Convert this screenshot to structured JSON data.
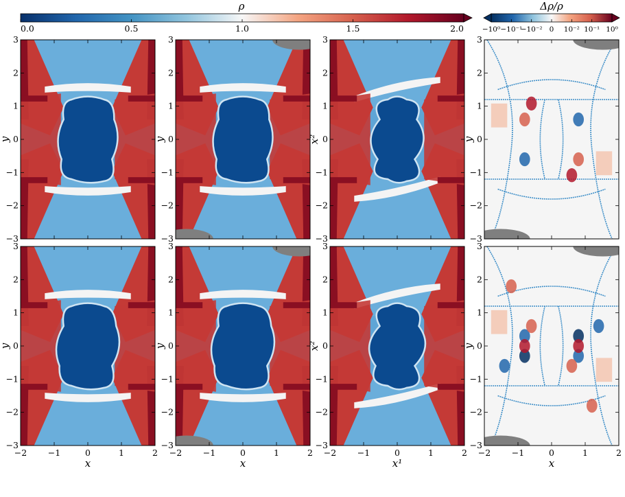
{
  "colorbar_rho": {
    "title": "ρ",
    "tick_labels": [
      "0.0",
      "0.5",
      "1.0",
      "1.5",
      "2.0"
    ],
    "ticks": [
      0.0,
      0.5,
      1.0,
      1.5,
      2.0
    ],
    "range": [
      0.0,
      2.0
    ],
    "extend": "max",
    "colormap": [
      "#08306b",
      "#2166ac",
      "#4393c3",
      "#92c5de",
      "#f7f7f7",
      "#f4a582",
      "#d6604d",
      "#b2182b",
      "#67001f"
    ]
  },
  "colorbar_diff": {
    "title": "Δρ/ρ",
    "tick_labels": [
      "−10⁰",
      "−10⁻¹",
      "−10⁻²",
      "0",
      "10⁻²",
      "10⁻¹",
      "10⁰"
    ],
    "extend": "both",
    "scale": "symlog"
  },
  "chart_data": [
    {
      "type": "heatmap",
      "panel": "top-1",
      "quantity": "ρ",
      "xlabel": "",
      "ylabel": "y",
      "xlim": [
        -2,
        2
      ],
      "ylim": [
        -3,
        3
      ],
      "xticks": [],
      "yticks": [
        "−3",
        "−2",
        "−1",
        "0",
        "1",
        "2",
        "3"
      ]
    },
    {
      "type": "heatmap",
      "panel": "top-2",
      "quantity": "ρ",
      "xlabel": "",
      "ylabel": "y",
      "xlim": [
        -2,
        2
      ],
      "ylim": [
        -3,
        3
      ],
      "xticks": [],
      "yticks": [
        "−3",
        "−2",
        "−1",
        "0",
        "1",
        "2",
        "3"
      ]
    },
    {
      "type": "heatmap",
      "panel": "top-3",
      "quantity": "ρ",
      "xlabel": "",
      "ylabel": "x²",
      "xlim": [
        -2,
        2
      ],
      "ylim": [
        -3,
        3
      ],
      "xticks": [],
      "yticks": [
        "−3",
        "−2",
        "−1",
        "0",
        "1",
        "2",
        "3"
      ]
    },
    {
      "type": "heatmap",
      "panel": "top-4",
      "quantity": "Δρ/ρ",
      "xlabel": "",
      "ylabel": "y",
      "xlim": [
        -2,
        2
      ],
      "ylim": [
        -3,
        3
      ],
      "xticks": [],
      "yticks": [
        "−3",
        "−2",
        "−1",
        "0",
        "1",
        "2",
        "3"
      ]
    },
    {
      "type": "heatmap",
      "panel": "bottom-1",
      "quantity": "ρ",
      "xlabel": "x",
      "ylabel": "y",
      "xlim": [
        -2,
        2
      ],
      "ylim": [
        -3,
        3
      ],
      "xticks": [
        "−2",
        "−1",
        "0",
        "1",
        "2"
      ],
      "yticks": [
        "−3",
        "−2",
        "−1",
        "0",
        "1",
        "2",
        "3"
      ]
    },
    {
      "type": "heatmap",
      "panel": "bottom-2",
      "quantity": "ρ",
      "xlabel": "x",
      "ylabel": "y",
      "xlim": [
        -2,
        2
      ],
      "ylim": [
        -3,
        3
      ],
      "xticks": [
        "−2",
        "−1",
        "0",
        "1",
        "2"
      ],
      "yticks": [
        "−3",
        "−2",
        "−1",
        "0",
        "1",
        "2",
        "3"
      ]
    },
    {
      "type": "heatmap",
      "panel": "bottom-3",
      "quantity": "ρ",
      "xlabel": "x¹",
      "ylabel": "x²",
      "xlim": [
        -2,
        2
      ],
      "ylim": [
        -3,
        3
      ],
      "xticks": [
        "−2",
        "−1",
        "0",
        "1",
        "2"
      ],
      "yticks": [
        "−3",
        "−2",
        "−1",
        "0",
        "1",
        "2",
        "3"
      ]
    },
    {
      "type": "heatmap",
      "panel": "bottom-4",
      "quantity": "Δρ/ρ",
      "xlabel": "x",
      "ylabel": "y",
      "xlim": [
        -2,
        2
      ],
      "ylim": [
        -3,
        3
      ],
      "xticks": [
        "−2",
        "−1",
        "0",
        "1",
        "2"
      ],
      "yticks": [
        "−3",
        "−2",
        "−1",
        "0",
        "1",
        "2",
        "3"
      ]
    }
  ],
  "colors": {
    "core_dense": "#0b4a8f",
    "ambient": "#6aaedb",
    "lobe_red": "#c43a36",
    "lobe_dark": "#8a0f22",
    "sheath_white": "#f4f4f4",
    "masked_gray": "#7f7f7f",
    "diff_background": "#f5f5f5",
    "diff_positive": "#d6604d",
    "diff_negative": "#2166ac"
  }
}
